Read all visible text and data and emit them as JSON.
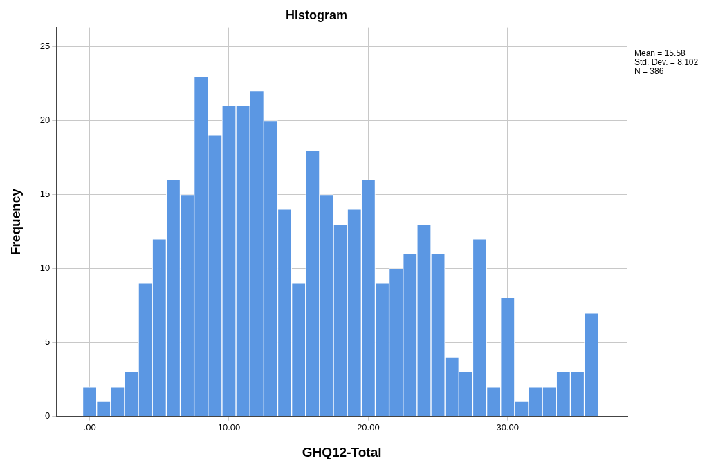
{
  "chart_data": {
    "type": "histogram",
    "title": "Histogram",
    "xlabel": "GHQ12-Total",
    "ylabel": "Frequency",
    "bins": [
      -0.5,
      0.5,
      1.5,
      2.5,
      3.5,
      4.5,
      5.5,
      6.5,
      7.5,
      8.5,
      9.5,
      10.5,
      11.5,
      12.5,
      13.5,
      14.5,
      15.5,
      16.5,
      17.5,
      18.5,
      19.5,
      20.5,
      21.5,
      22.5,
      23.5,
      24.5,
      25.5,
      26.5,
      27.5,
      28.5,
      29.5,
      30.5,
      31.5,
      32.5,
      33.5,
      34.5,
      35.5,
      36.5
    ],
    "values": [
      2,
      1,
      2,
      3,
      9,
      12,
      16,
      15,
      23,
      19,
      21,
      21,
      22,
      20,
      14,
      9,
      18,
      15,
      13,
      14,
      16,
      9,
      10,
      11,
      13,
      11,
      4,
      3,
      12,
      2,
      8,
      1,
      2,
      2,
      3,
      3,
      7
    ],
    "color": "#5b97e3",
    "xlim": [
      -2.4,
      38.6
    ],
    "ylim": [
      0,
      26.3
    ],
    "xticks": [
      {
        "value": 0,
        "label": ".00"
      },
      {
        "value": 10,
        "label": "10.00"
      },
      {
        "value": 20,
        "label": "20.00"
      },
      {
        "value": 30,
        "label": "30.00"
      }
    ],
    "yticks": [
      0,
      5,
      10,
      15,
      20,
      25
    ],
    "grid": true,
    "annotations": [
      "Mean = 15.58",
      "Std. Dev. = 8.102",
      "N = 386"
    ]
  }
}
